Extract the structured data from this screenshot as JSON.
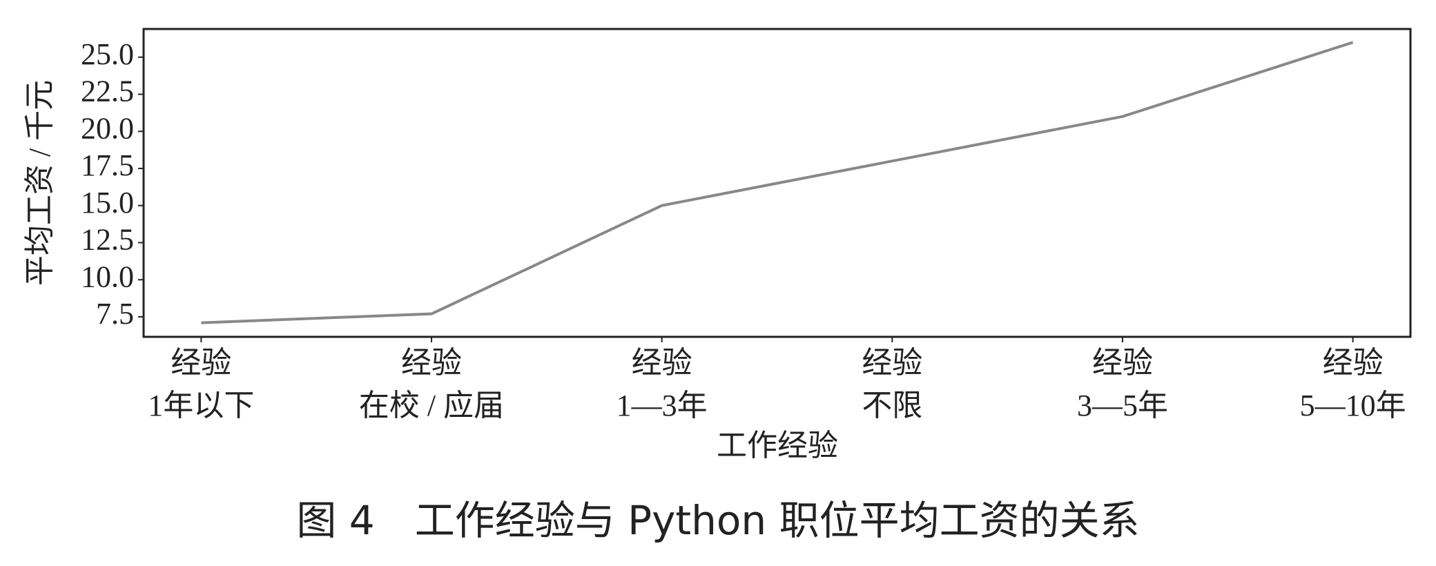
{
  "chart_data": {
    "type": "line",
    "title": "图 4　工作经验与 Python 职位平均工资的关系",
    "x_label": "工作经验",
    "y_label": "平均工资 / 千元",
    "categories": [
      [
        "经验",
        "1年以下"
      ],
      [
        "经验",
        "在校 / 应届"
      ],
      [
        "经验",
        "1—3年"
      ],
      [
        "经验",
        "不限"
      ],
      [
        "经验",
        "3—5年"
      ],
      [
        "经验",
        "5—10年"
      ]
    ],
    "values": [
      7.1,
      7.7,
      15.0,
      18.0,
      21.0,
      26.0
    ],
    "color": "#888888",
    "ylim": [
      6.15,
      26.9
    ],
    "yticks": [
      7.5,
      {
        "value": 10,
        "label": "10.0"
      },
      12.5,
      {
        "value": 15,
        "label": "15.0"
      },
      17.5,
      {
        "value": 20,
        "label": "20.0"
      },
      22.5,
      {
        "value": 25,
        "label": "25.0"
      }
    ],
    "grid": false
  }
}
